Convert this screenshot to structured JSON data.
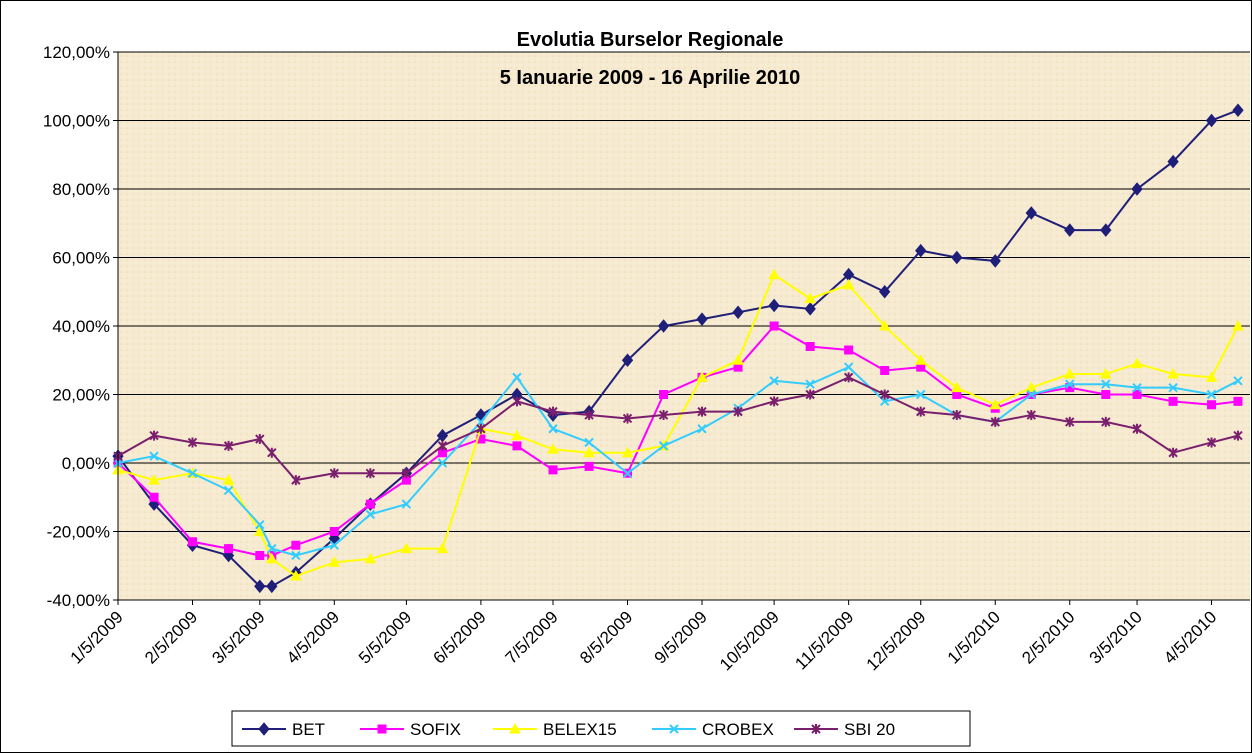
{
  "chart_data": {
    "type": "line",
    "title": "Evolutia Burselor Regionale",
    "subtitle": "5 Ianuarie 2009 - 16 Aprilie 2010",
    "x": [
      "1/5/2009",
      "1/20/2009",
      "2/5/2009",
      "2/20/2009",
      "3/5/2009",
      "3/10/2009",
      "3/20/2009",
      "4/5/2009",
      "4/20/2009",
      "5/5/2009",
      "5/20/2009",
      "6/5/2009",
      "6/20/2009",
      "7/5/2009",
      "7/20/2009",
      "8/5/2009",
      "8/20/2009",
      "9/5/2009",
      "9/20/2009",
      "10/5/2009",
      "10/20/2009",
      "11/5/2009",
      "11/20/2009",
      "12/5/2009",
      "12/20/2009",
      "1/5/2010",
      "1/20/2010",
      "2/5/2010",
      "2/20/2010",
      "3/5/2010",
      "3/20/2010",
      "4/5/2010",
      "4/16/2010"
    ],
    "series": [
      {
        "name": "BET",
        "color": "#1f1f7a",
        "marker": "diamond",
        "values": [
          2,
          -12,
          -24,
          -27,
          -36,
          -36,
          -32,
          -22,
          -12,
          -3,
          8,
          14,
          20,
          14,
          15,
          30,
          40,
          42,
          44,
          46,
          45,
          55,
          50,
          62,
          60,
          59,
          73,
          68,
          68,
          80,
          88,
          100,
          103
        ]
      },
      {
        "name": "SOFIX",
        "color": "#ff00ff",
        "marker": "square",
        "values": [
          0,
          -10,
          -23,
          -25,
          -27,
          -27,
          -24,
          -20,
          -12,
          -5,
          3,
          7,
          5,
          -2,
          -1,
          -3,
          20,
          25,
          28,
          40,
          34,
          33,
          27,
          28,
          20,
          16,
          20,
          22,
          20,
          20,
          18,
          17,
          18
        ]
      },
      {
        "name": "BELEX15",
        "color": "#ffff00",
        "marker": "triangle",
        "values": [
          -2,
          -5,
          -3,
          -5,
          -20,
          -28,
          -33,
          -29,
          -28,
          -25,
          -25,
          10,
          8,
          4,
          3,
          3,
          5,
          25,
          30,
          55,
          48,
          52,
          40,
          30,
          22,
          17,
          22,
          26,
          26,
          29,
          26,
          25,
          40
        ]
      },
      {
        "name": "CROBEX",
        "color": "#33ccff",
        "marker": "x",
        "values": [
          0,
          2,
          -3,
          -8,
          -18,
          -25,
          -27,
          -24,
          -15,
          -12,
          0,
          12,
          25,
          10,
          6,
          -3,
          5,
          10,
          16,
          24,
          23,
          28,
          18,
          20,
          14,
          12,
          20,
          23,
          23,
          22,
          22,
          20,
          24
        ]
      },
      {
        "name": "SBI 20",
        "color": "#7a1f6e",
        "marker": "star",
        "values": [
          2,
          8,
          6,
          5,
          7,
          3,
          -5,
          -3,
          -3,
          -3,
          5,
          10,
          18,
          15,
          14,
          13,
          14,
          15,
          15,
          18,
          20,
          25,
          20,
          15,
          14,
          12,
          14,
          12,
          12,
          10,
          3,
          6,
          8
        ]
      }
    ],
    "xlim": [
      "1/5/2009",
      "4/21/2010"
    ],
    "xticks": [
      "1/5/2009",
      "2/5/2009",
      "3/5/2009",
      "4/5/2009",
      "5/5/2009",
      "6/5/2009",
      "7/5/2009",
      "8/5/2009",
      "9/5/2009",
      "10/5/2009",
      "11/5/2009",
      "12/5/2009",
      "1/5/2010",
      "2/5/2010",
      "3/5/2010",
      "4/5/2010"
    ],
    "ylim": [
      -40,
      120
    ],
    "yticks": [
      {
        "value": -40,
        "label": "-40,00%"
      },
      {
        "value": -20,
        "label": "-20,00%"
      },
      {
        "value": 0,
        "label": "0,00%"
      },
      {
        "value": 20,
        "label": "20,00%"
      },
      {
        "value": 40,
        "label": "40,00%"
      },
      {
        "value": 60,
        "label": "60,00%"
      },
      {
        "value": 80,
        "label": "80,00%"
      },
      {
        "value": 100,
        "label": "100,00%"
      },
      {
        "value": 120,
        "label": "120,00%"
      }
    ],
    "grid": true,
    "legend": "bottom"
  }
}
